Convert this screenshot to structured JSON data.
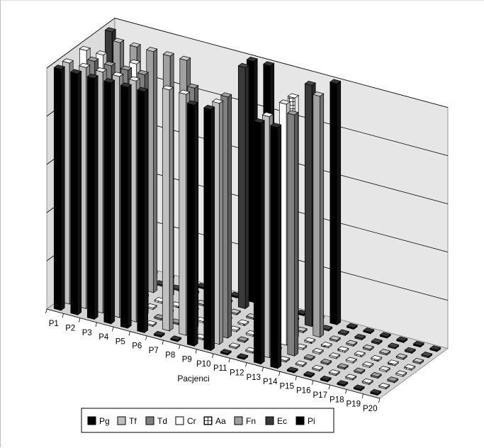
{
  "chart_data": {
    "type": "bar3d",
    "xlabel": "Pacjenci",
    "ylabel": "",
    "title": "",
    "grid": true,
    "legend_position": "bottom",
    "categories": [
      "P1",
      "P2",
      "P3",
      "P4",
      "P5",
      "P6",
      "P7",
      "P8",
      "P9",
      "P10",
      "P11",
      "P12",
      "P13",
      "P14",
      "P15",
      "P16",
      "P17",
      "P18",
      "P19",
      "P20"
    ],
    "series": [
      {
        "name": "Pg",
        "color": "#000000",
        "values": [
          1,
          1,
          1,
          1,
          1,
          1,
          0,
          0,
          1,
          1,
          0,
          0,
          1,
          1,
          0,
          0,
          0,
          0,
          0,
          0
        ]
      },
      {
        "name": "Tf",
        "color": "#c0c0c0",
        "values": [
          1,
          1,
          1,
          1,
          1,
          0,
          1,
          1,
          0,
          1,
          0,
          0,
          1,
          0,
          0,
          0,
          0,
          0,
          0,
          0
        ]
      },
      {
        "name": "Td",
        "color": "#808080",
        "values": [
          0,
          1,
          1,
          1,
          1,
          0,
          0,
          1,
          0,
          1,
          0,
          0,
          0,
          1,
          0,
          0,
          0,
          0,
          0,
          0
        ]
      },
      {
        "name": "Cr",
        "color": "#ffffff",
        "values": [
          1,
          1,
          0,
          1,
          0,
          0,
          0,
          0,
          0,
          0,
          0,
          0,
          1,
          0,
          0,
          0,
          0,
          0,
          0,
          0
        ]
      },
      {
        "name": "Aa",
        "color": "#ffffff",
        "hatch": true,
        "values": [
          0,
          0,
          0,
          0,
          0,
          0,
          0,
          0,
          0,
          0,
          0,
          0,
          1,
          0,
          0,
          0,
          0,
          0,
          0,
          0
        ]
      },
      {
        "name": "Fn",
        "color": "#a0a0a0",
        "values": [
          0,
          1,
          1,
          1,
          1,
          1,
          0,
          0,
          0,
          0,
          0,
          0,
          0,
          1,
          0,
          0,
          0,
          0,
          0,
          0
        ]
      },
      {
        "name": "Ec",
        "color": "#3a3a3a",
        "values": [
          1,
          0,
          0,
          0,
          0,
          0,
          0,
          0,
          1,
          0,
          0,
          0,
          1,
          0,
          0,
          0,
          0,
          0,
          0,
          0
        ]
      },
      {
        "name": "Pi",
        "color": "#000000",
        "values": [
          0,
          0,
          0,
          0,
          0,
          0,
          0,
          0,
          1,
          1,
          0,
          0,
          0,
          1,
          0,
          0,
          0,
          0,
          0,
          0
        ]
      }
    ]
  }
}
